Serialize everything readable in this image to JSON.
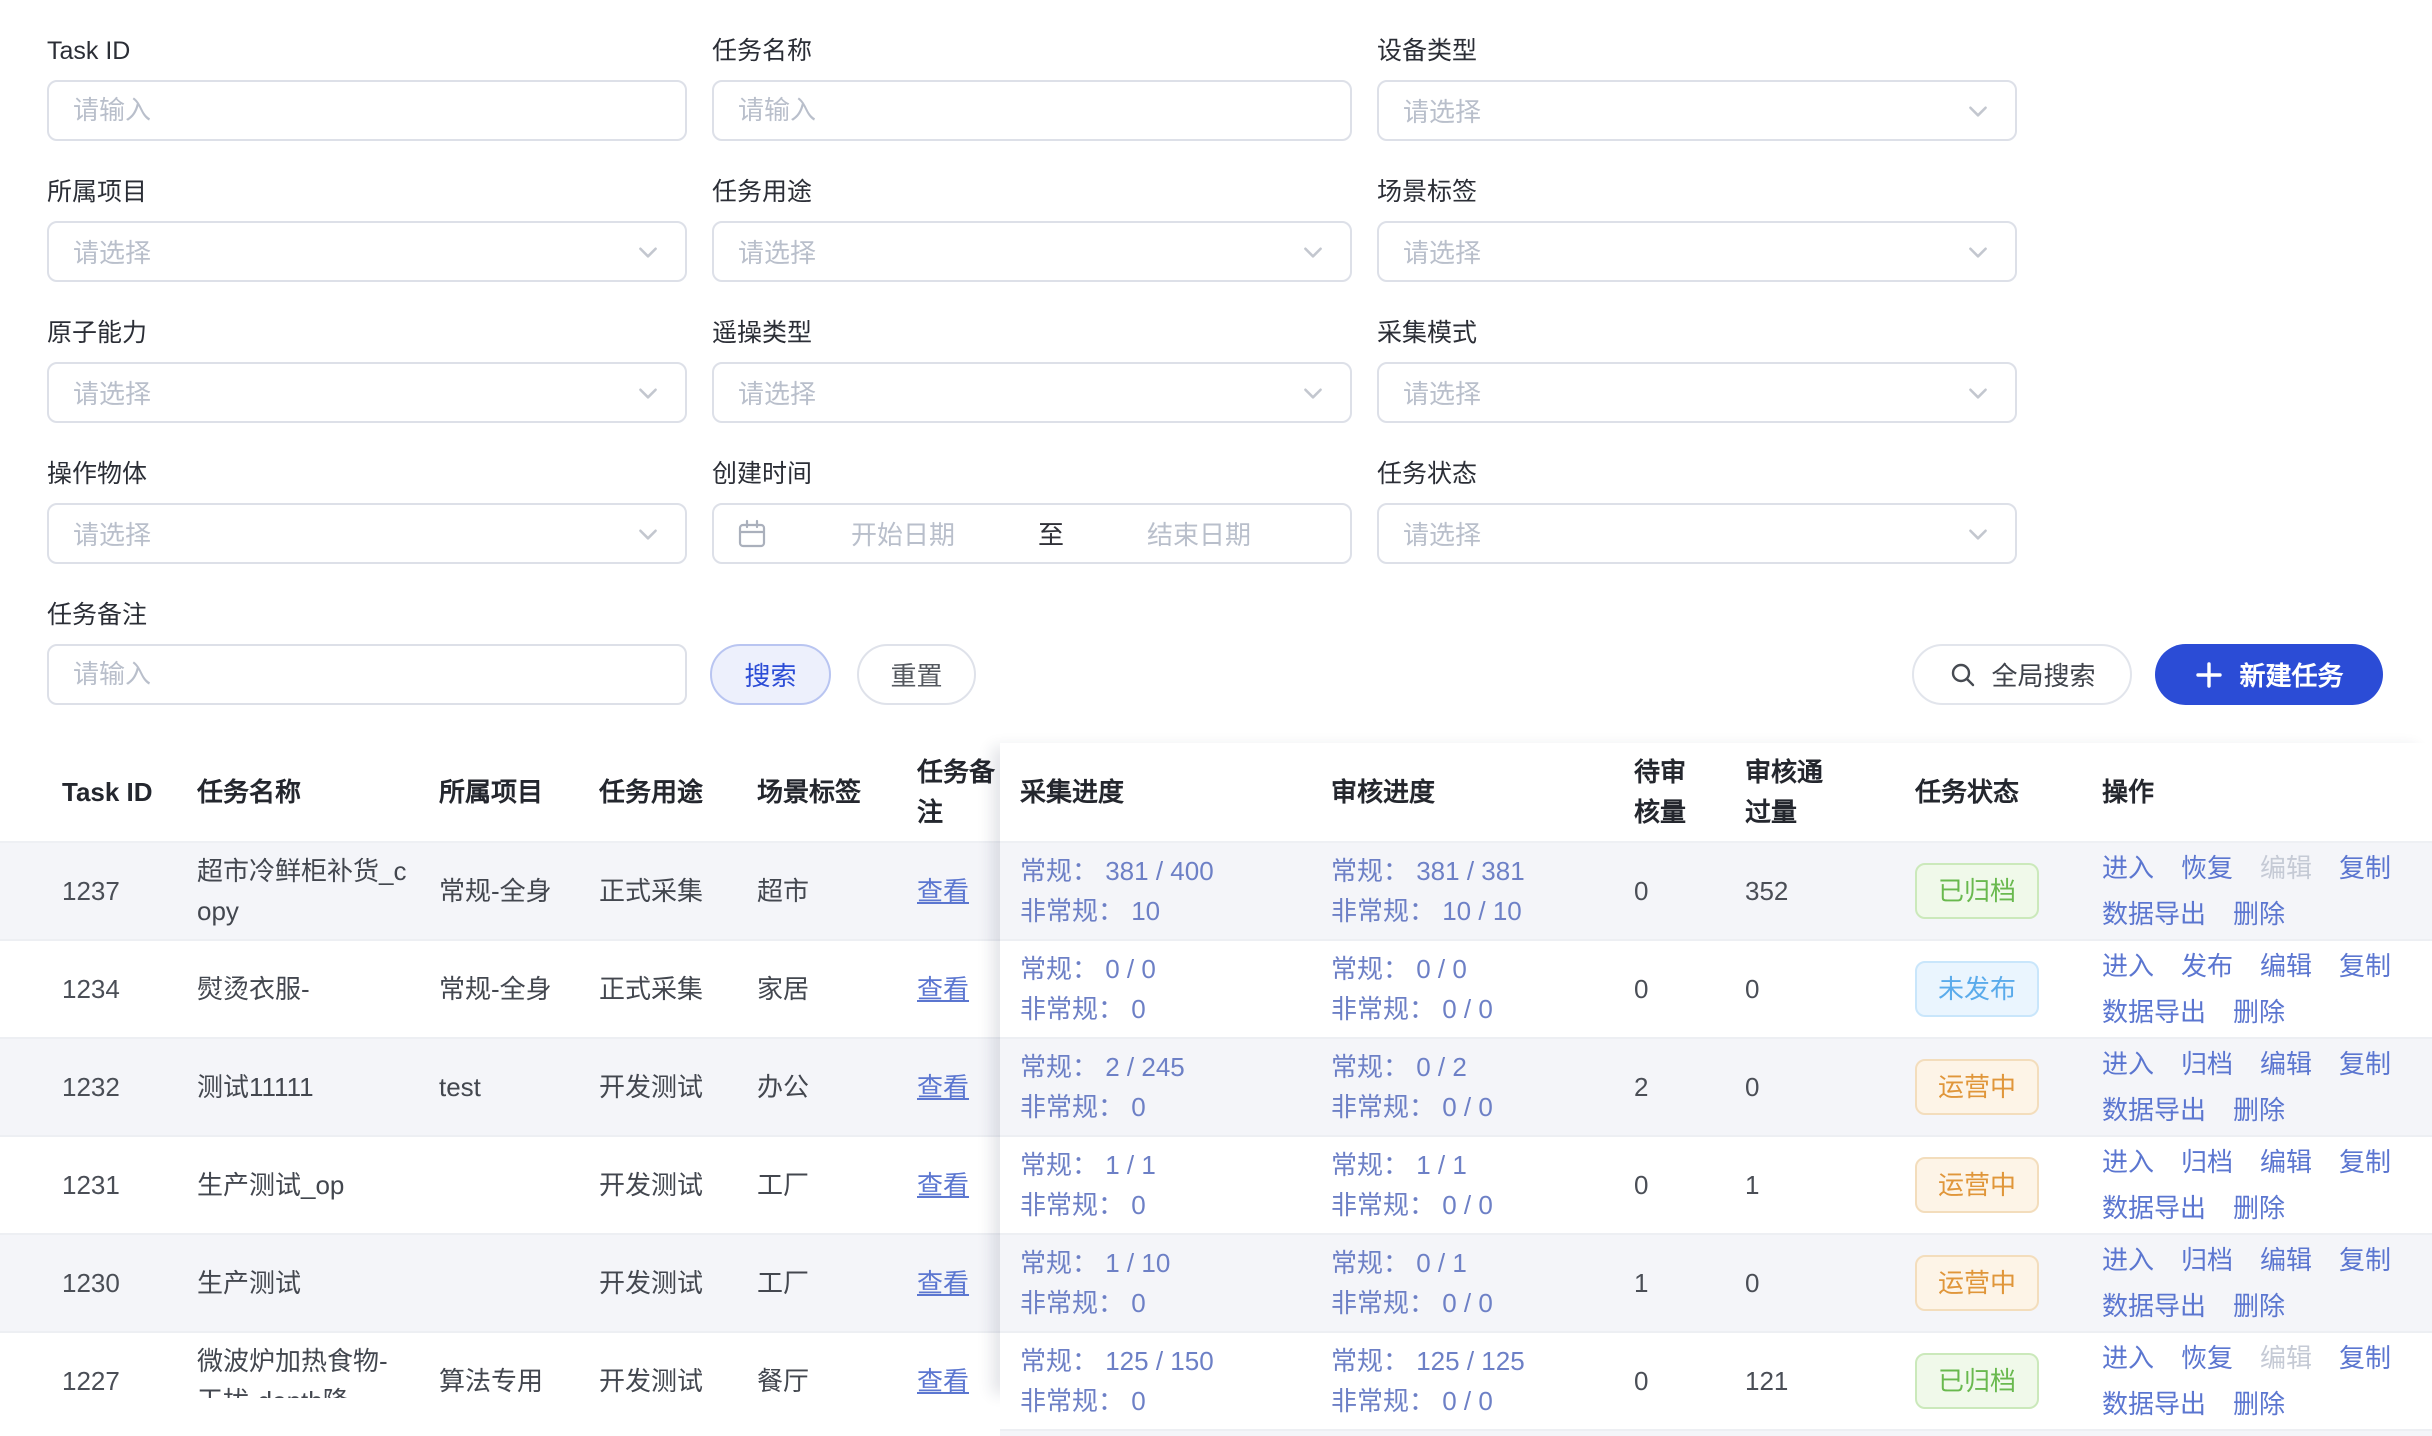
{
  "filters": {
    "fields": [
      {
        "key": "task-id",
        "label": "Task ID",
        "placeholder": "请输入",
        "type": "input"
      },
      {
        "key": "task-name",
        "label": "任务名称",
        "placeholder": "请输入",
        "type": "input"
      },
      {
        "key": "device-type",
        "label": "设备类型",
        "placeholder": "请选择",
        "type": "select"
      },
      {
        "key": "project",
        "label": "所属项目",
        "placeholder": "请选择",
        "type": "select"
      },
      {
        "key": "task-purpose",
        "label": "任务用途",
        "placeholder": "请选择",
        "type": "select"
      },
      {
        "key": "scene-tag",
        "label": "场景标签",
        "placeholder": "请选择",
        "type": "select"
      },
      {
        "key": "atomic-capability",
        "label": "原子能力",
        "placeholder": "请选择",
        "type": "select"
      },
      {
        "key": "teleop-type",
        "label": "遥操类型",
        "placeholder": "请选择",
        "type": "select"
      },
      {
        "key": "collection-mode",
        "label": "采集模式",
        "placeholder": "请选择",
        "type": "select"
      },
      {
        "key": "operation-object",
        "label": "操作物体",
        "placeholder": "请选择",
        "type": "select"
      },
      {
        "key": "create-time",
        "label": "创建时间",
        "type": "daterange",
        "start_placeholder": "开始日期",
        "separator": "至",
        "end_placeholder": "结束日期"
      },
      {
        "key": "task-status",
        "label": "任务状态",
        "placeholder": "请选择",
        "type": "select"
      },
      {
        "key": "task-note",
        "label": "任务备注",
        "placeholder": "请输入",
        "type": "input"
      }
    ],
    "search_button": "搜索",
    "reset_button": "重置",
    "global_search_button": "全局搜索",
    "new_task_button": "新建任务"
  },
  "table": {
    "columns": [
      "Task ID",
      "任务名称",
      "所属项目",
      "任务用途",
      "场景标签",
      "任务备注",
      "采集进度",
      "审核进度",
      "待审核量",
      "审核通过量",
      "任务状态",
      "操作"
    ],
    "progress_labels": {
      "regular": "常规：",
      "irregular": "非常规："
    },
    "view_link": "查看",
    "rows": [
      {
        "id": "1237",
        "name": "超市冷鲜柜补货_copy",
        "project": "常规-全身",
        "purpose": "正式采集",
        "scene": "超市",
        "collect": {
          "regular": "381 / 400",
          "irregular": "10"
        },
        "review": {
          "regular": "381 / 381",
          "irregular": "10 / 10"
        },
        "pending": "0",
        "approved": "352",
        "status": "已归档",
        "status_type": "success",
        "actions": [
          {
            "label": "进入"
          },
          {
            "label": "恢复"
          },
          {
            "label": "编辑",
            "disabled": true
          },
          {
            "label": "复制"
          },
          {
            "label": "数据导出"
          },
          {
            "label": "删除"
          }
        ]
      },
      {
        "id": "1234",
        "name": "熨烫衣服-",
        "project": "常规-全身",
        "purpose": "正式采集",
        "scene": "家居",
        "collect": {
          "regular": "0 / 0",
          "irregular": "0"
        },
        "review": {
          "regular": "0 / 0",
          "irregular": "0 / 0"
        },
        "pending": "0",
        "approved": "0",
        "status": "未发布",
        "status_type": "info",
        "actions": [
          {
            "label": "进入"
          },
          {
            "label": "发布"
          },
          {
            "label": "编辑"
          },
          {
            "label": "复制"
          },
          {
            "label": "数据导出"
          },
          {
            "label": "删除"
          }
        ]
      },
      {
        "id": "1232",
        "name": "测试11111",
        "project": "test",
        "purpose": "开发测试",
        "scene": "办公",
        "collect": {
          "regular": "2 / 245",
          "irregular": "0"
        },
        "review": {
          "regular": "0 / 2",
          "irregular": "0 / 0"
        },
        "pending": "2",
        "approved": "0",
        "status": "运营中",
        "status_type": "warning",
        "actions": [
          {
            "label": "进入"
          },
          {
            "label": "归档"
          },
          {
            "label": "编辑"
          },
          {
            "label": "复制"
          },
          {
            "label": "数据导出"
          },
          {
            "label": "删除"
          }
        ]
      },
      {
        "id": "1231",
        "name": "生产测试_op",
        "project": "",
        "purpose": "开发测试",
        "scene": "工厂",
        "collect": {
          "regular": "1 / 1",
          "irregular": "0"
        },
        "review": {
          "regular": "1 / 1",
          "irregular": "0 / 0"
        },
        "pending": "0",
        "approved": "1",
        "status": "运营中",
        "status_type": "warning",
        "actions": [
          {
            "label": "进入"
          },
          {
            "label": "归档"
          },
          {
            "label": "编辑"
          },
          {
            "label": "复制"
          },
          {
            "label": "数据导出"
          },
          {
            "label": "删除"
          }
        ]
      },
      {
        "id": "1230",
        "name": "生产测试",
        "project": "",
        "purpose": "开发测试",
        "scene": "工厂",
        "collect": {
          "regular": "1 / 10",
          "irregular": "0"
        },
        "review": {
          "regular": "0 / 1",
          "irregular": "0 / 0"
        },
        "pending": "1",
        "approved": "0",
        "status": "运营中",
        "status_type": "warning",
        "actions": [
          {
            "label": "进入"
          },
          {
            "label": "归档"
          },
          {
            "label": "编辑"
          },
          {
            "label": "复制"
          },
          {
            "label": "数据导出"
          },
          {
            "label": "删除"
          }
        ]
      },
      {
        "id": "1227",
        "name": "微波炉加热食物-干扰-depth降...",
        "project": "算法专用",
        "purpose": "开发测试",
        "scene": "餐厅",
        "collect": {
          "regular": "125 / 150",
          "irregular": "0"
        },
        "review": {
          "regular": "125 / 125",
          "irregular": "0 / 0"
        },
        "pending": "0",
        "approved": "121",
        "status": "已归档",
        "status_type": "success",
        "actions": [
          {
            "label": "进入"
          },
          {
            "label": "恢复"
          },
          {
            "label": "编辑",
            "disabled": true
          },
          {
            "label": "复制"
          },
          {
            "label": "数据导出"
          },
          {
            "label": "删除"
          }
        ]
      }
    ]
  },
  "colors": {
    "primary": "#2b4cd6",
    "link": "#5b76d0",
    "progress_text": "#6d80c6",
    "status_success": "#69b94e",
    "status_info": "#5aabeb",
    "status_warning": "#e0963a",
    "row_alt_bg": "#f4f5f9"
  }
}
